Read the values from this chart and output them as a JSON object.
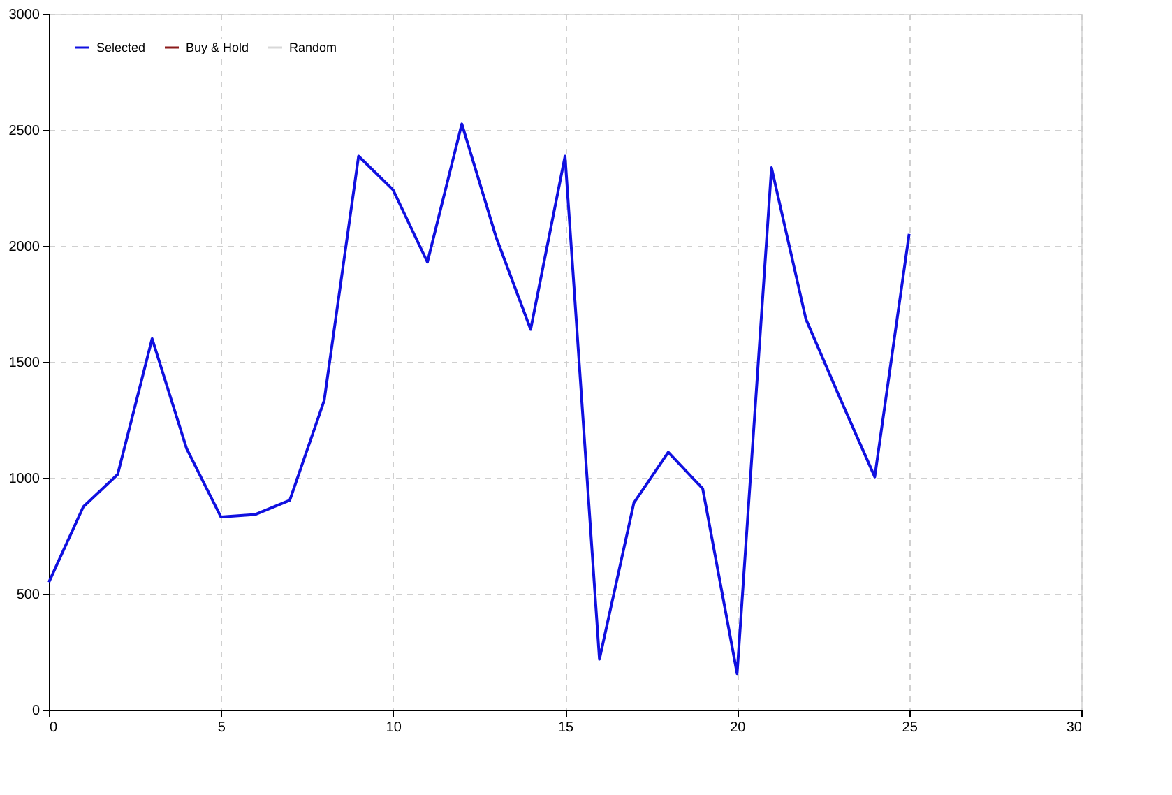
{
  "chart_data": {
    "type": "line",
    "x": [
      0,
      1,
      2,
      3,
      4,
      5,
      6,
      7,
      8,
      9,
      10,
      11,
      12,
      13,
      14,
      15,
      16,
      17,
      18,
      19,
      20,
      21,
      22,
      23,
      24,
      25
    ],
    "series": [
      {
        "name": "Selected",
        "color": "#1010e0",
        "values": [
          550,
          875,
          1015,
          1600,
          1127,
          831,
          842,
          903,
          1333,
          2387,
          2242,
          1930,
          2526,
          2036,
          1640,
          2387,
          218,
          892,
          1110,
          954,
          156,
          2337,
          1684,
          1340,
          1004,
          2052
        ]
      },
      {
        "name": "Buy & Hold",
        "color": "#8b1a1a",
        "values": [
          null,
          null,
          null,
          null,
          null,
          null,
          null,
          null,
          null,
          null,
          null,
          null,
          null,
          null,
          null,
          null,
          null,
          null,
          null,
          null,
          null,
          null,
          null,
          null,
          null,
          null
        ]
      },
      {
        "name": "Random",
        "color": "#d8d8d8",
        "values": [
          null,
          null,
          null,
          null,
          null,
          null,
          null,
          null,
          null,
          null,
          null,
          null,
          null,
          null,
          null,
          null,
          null,
          null,
          null,
          null,
          null,
          null,
          null,
          null,
          null,
          null
        ]
      }
    ],
    "xlim": [
      0,
      30
    ],
    "xticks": [
      0,
      5,
      10,
      15,
      20,
      25,
      30
    ],
    "ylim": [
      0,
      3000
    ],
    "yticks": [
      0,
      500,
      1000,
      1500,
      2000,
      2500,
      3000
    ],
    "grid": true,
    "legend": "top left",
    "line_style": "solid",
    "marker": "none"
  }
}
